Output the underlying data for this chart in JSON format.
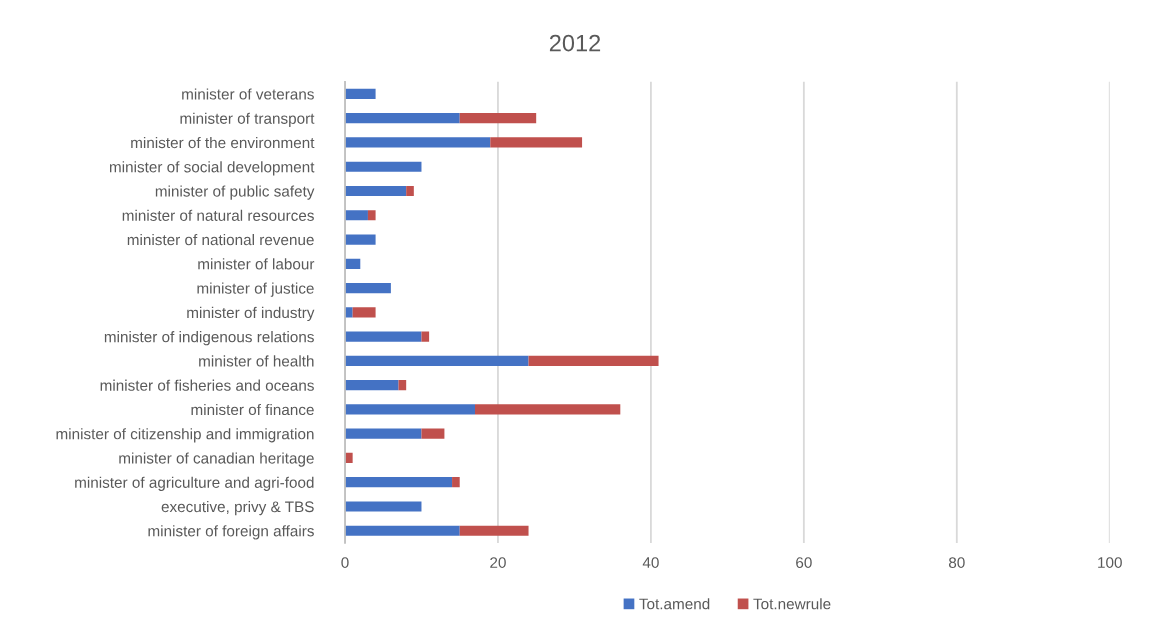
{
  "chart_data": {
    "type": "bar",
    "title": "2012",
    "orientation": "horizontal",
    "stacked": true,
    "categories": [
      "minister of veterans",
      "minister of transport",
      "minister of the environment",
      "minister of social development",
      "minister of public safety",
      "minister of natural resources",
      "minister of national revenue",
      "minister of labour",
      "minister of justice",
      "minister of industry",
      "minister of indigenous relations",
      "minister of health",
      "minister of fisheries and oceans",
      "minister of finance",
      "minister of citizenship and immigration",
      "minister of canadian heritage",
      "minister of agriculture and agri-food",
      "executive, privy & TBS",
      "minister of foreign affairs"
    ],
    "series": [
      {
        "name": "Tot.amend",
        "color": "#4472c4",
        "values": [
          4,
          15,
          19,
          10,
          8,
          3,
          4,
          2,
          6,
          1,
          10,
          24,
          7,
          17,
          10,
          0,
          14,
          10,
          15
        ]
      },
      {
        "name": "Tot.newrule",
        "color": "#c0504d",
        "values": [
          0,
          10,
          12,
          0,
          1,
          1,
          0,
          0,
          0,
          3,
          1,
          17,
          1,
          19,
          3,
          1,
          1,
          0,
          9
        ]
      }
    ],
    "xlim": [
      0,
      100
    ],
    "xticks": [
      0,
      20,
      40,
      60,
      80,
      100
    ],
    "grid": "x",
    "legend": "bottom"
  }
}
